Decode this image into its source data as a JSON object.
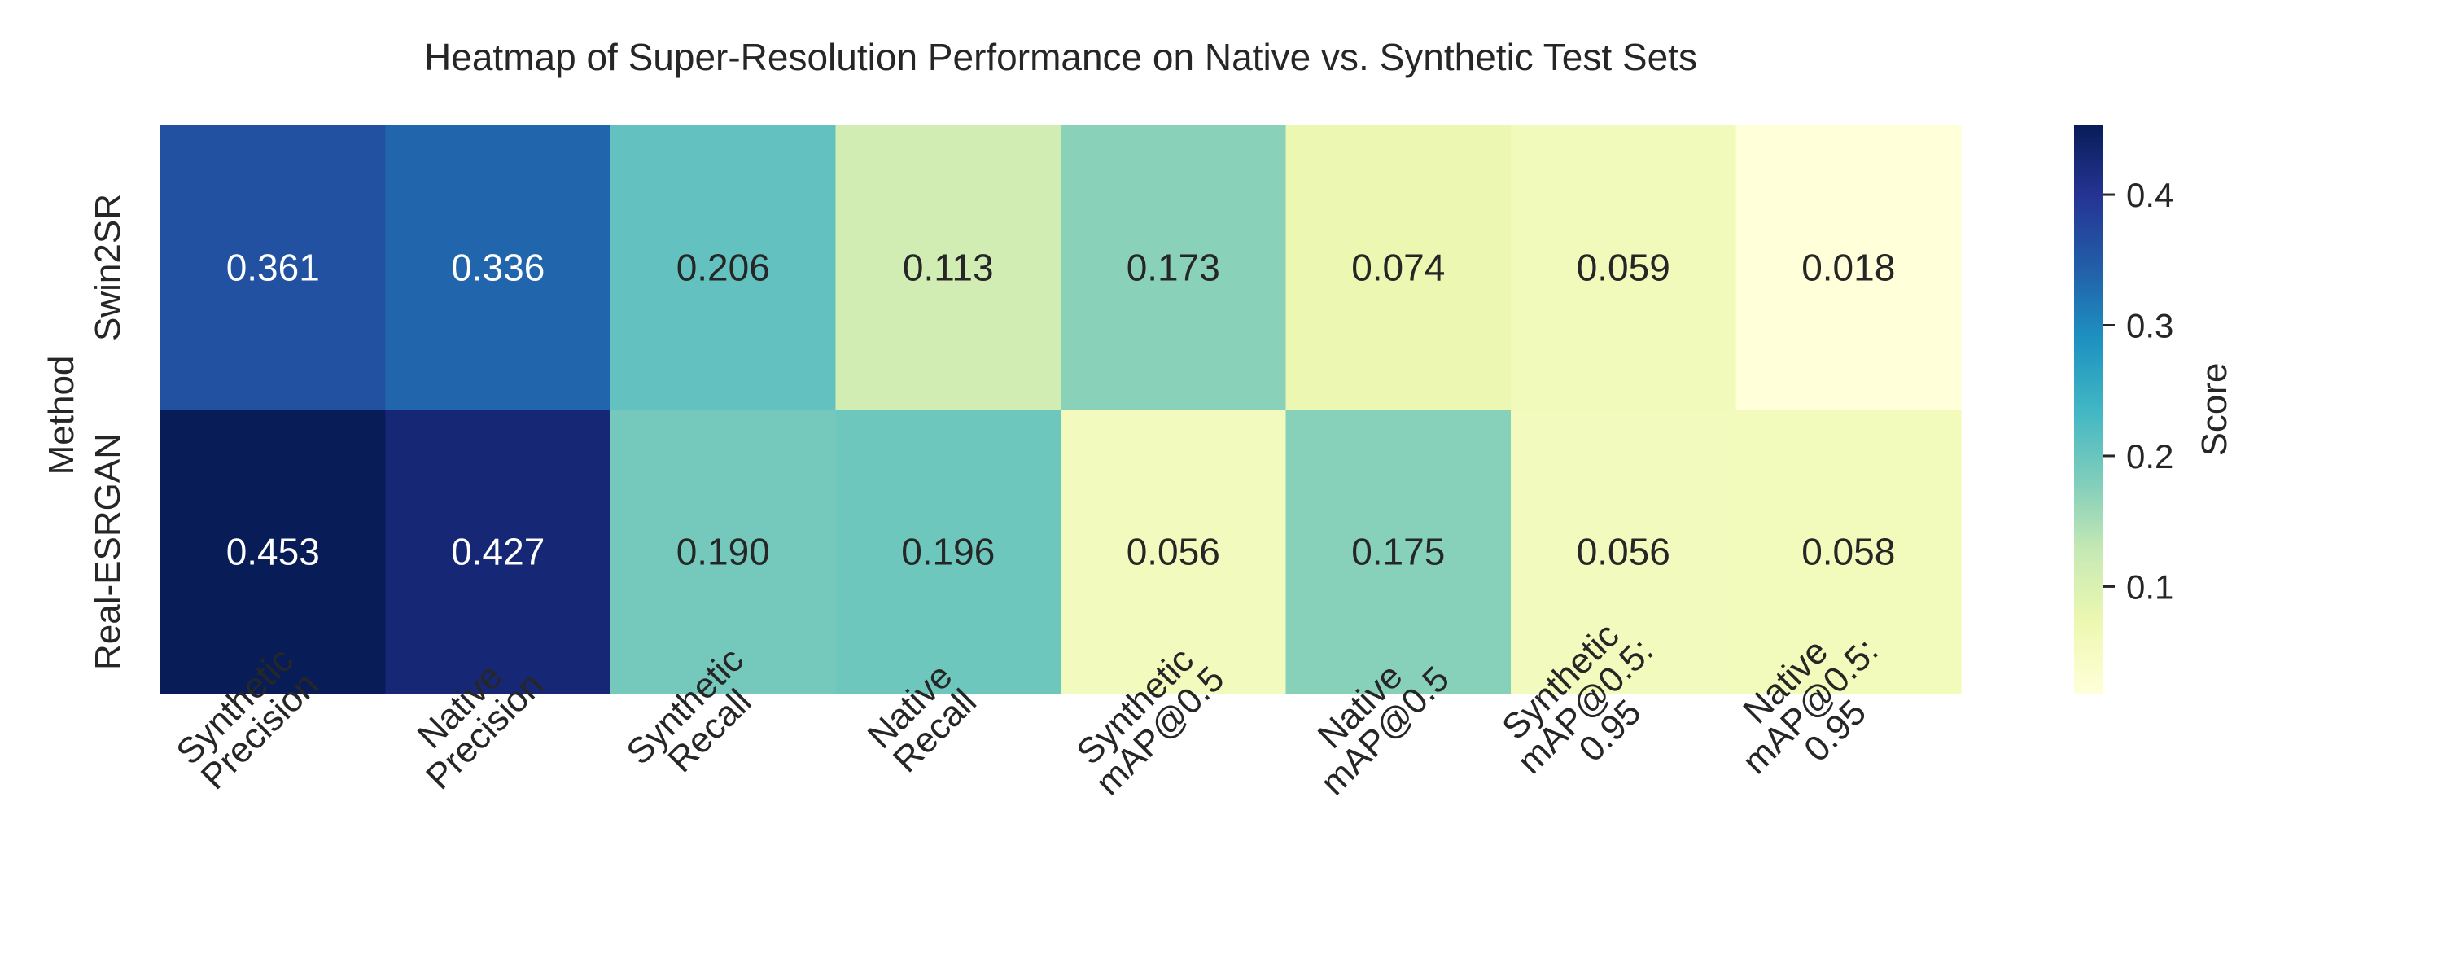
{
  "chart_data": {
    "type": "heatmap",
    "title": "Heatmap of Super-Resolution Performance on Native vs. Synthetic Test Sets",
    "ylabel": "Method",
    "xlabel": "",
    "rows": [
      "Swin2SR",
      "Real-ESRGAN"
    ],
    "columns": [
      [
        "Synthetic",
        "Precision"
      ],
      [
        "Native",
        "Precision"
      ],
      [
        "Synthetic",
        "Recall"
      ],
      [
        "Native",
        "Recall"
      ],
      [
        "Synthetic",
        "mAP@0.5"
      ],
      [
        "Native",
        "mAP@0.5"
      ],
      [
        "Synthetic",
        "mAP@0.5:",
        "0.95"
      ],
      [
        "Native",
        "mAP@0.5:",
        "0.95"
      ]
    ],
    "values": [
      [
        0.361,
        0.336,
        0.206,
        0.113,
        0.173,
        0.074,
        0.059,
        0.018
      ],
      [
        0.453,
        0.427,
        0.19,
        0.196,
        0.056,
        0.175,
        0.056,
        0.058
      ]
    ],
    "value_labels": [
      [
        "0.361",
        "0.336",
        "0.206",
        "0.113",
        "0.173",
        "0.074",
        "0.059",
        "0.018"
      ],
      [
        "0.453",
        "0.427",
        "0.190",
        "0.196",
        "0.056",
        "0.175",
        "0.056",
        "0.058"
      ]
    ],
    "colormap": "YlGnBu",
    "colorbar": {
      "label": "Score",
      "range": [
        0.018,
        0.453
      ],
      "ticks": [
        0.1,
        0.2,
        0.3,
        0.4
      ],
      "tick_labels": [
        "0.1",
        "0.2",
        "0.3",
        "0.4"
      ]
    }
  }
}
